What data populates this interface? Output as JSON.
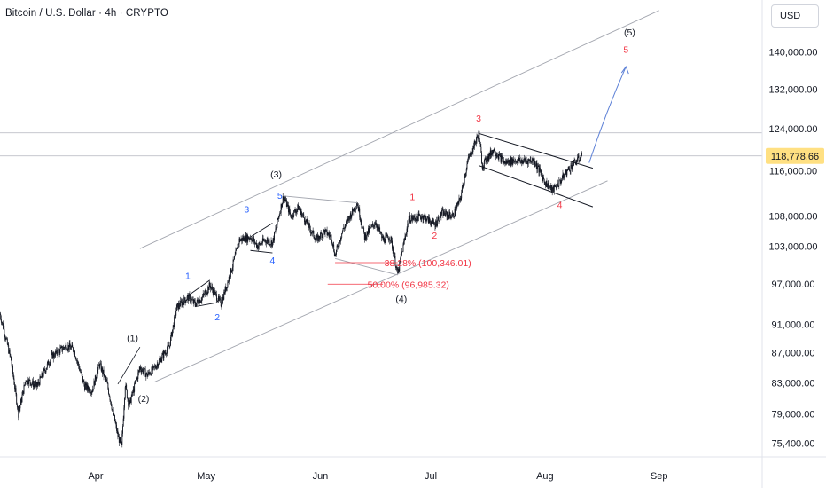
{
  "header": {
    "title": "Bitcoin / U.S. Dollar · 4h · CRYPTO",
    "currency": "USD"
  },
  "colors": {
    "candle": "#131722",
    "channel": "#a3a6af",
    "grid_line": "#b2b5be",
    "wave_blue": "#2962ff",
    "wave_red": "#f23645",
    "wave_black": "#131722",
    "price_badge": "#ffe082",
    "arrow": "#5b7fd6"
  },
  "chart_data": {
    "type": "candlestick",
    "title": "Bitcoin / U.S. Dollar · 4h · CRYPTO",
    "y_scale": "log",
    "y_range": [
      73800,
      152000
    ],
    "y_ticks": [
      "140,000.00",
      "132,000.00",
      "124,000.00",
      "116,000.00",
      "108,000.00",
      "103,000.00",
      "97,000.00",
      "91,000.00",
      "87,000.00",
      "83,000.00",
      "79,000.00",
      "75,400.00"
    ],
    "y_tick_values": [
      140000,
      132000,
      124000,
      116000,
      108000,
      103000,
      97000,
      91000,
      87000,
      83000,
      79000,
      75400
    ],
    "x_ticks": [
      "Apr",
      "May",
      "Jun",
      "Jul",
      "Aug",
      "Sep"
    ],
    "x_tick_dates": [
      "2025-04-01",
      "2025-05-01",
      "2025-06-01",
      "2025-07-01",
      "2025-08-01",
      "2025-09-01"
    ],
    "x_range": [
      "2025-03-06",
      "2025-09-29"
    ],
    "current_price": "118,778.66",
    "current_price_value": 118778.66,
    "reference_level": 123200,
    "price_path": [
      [
        "2025-03-06",
        92500
      ],
      [
        "2025-03-09",
        86000
      ],
      [
        "2025-03-11",
        79000
      ],
      [
        "2025-03-13",
        83500
      ],
      [
        "2025-03-16",
        82500
      ],
      [
        "2025-03-20",
        86500
      ],
      [
        "2025-03-24",
        88000
      ],
      [
        "2025-03-26",
        87500
      ],
      [
        "2025-03-29",
        82500
      ],
      [
        "2025-03-31",
        82000
      ],
      [
        "2025-04-02",
        85500
      ],
      [
        "2025-04-04",
        83000
      ],
      [
        "2025-04-07",
        76300
      ],
      [
        "2025-04-08",
        75000
      ],
      [
        "2025-04-09",
        82800
      ],
      [
        "2025-04-10",
        80000
      ],
      [
        "2025-04-13",
        85000
      ],
      [
        "2025-04-15",
        84000
      ],
      [
        "2025-04-17",
        85000
      ],
      [
        "2025-04-21",
        88000
      ],
      [
        "2025-04-23",
        93500
      ],
      [
        "2025-04-26",
        95000
      ],
      [
        "2025-04-28",
        94000
      ],
      [
        "2025-04-30",
        95000
      ],
      [
        "2025-05-02",
        96800
      ],
      [
        "2025-05-05",
        94000
      ],
      [
        "2025-05-08",
        99500
      ],
      [
        "2025-05-10",
        104000
      ],
      [
        "2025-05-13",
        104500
      ],
      [
        "2025-05-15",
        103000
      ],
      [
        "2025-05-17",
        104000
      ],
      [
        "2025-05-19",
        103500
      ],
      [
        "2025-05-22",
        111500
      ],
      [
        "2025-05-24",
        108000
      ],
      [
        "2025-05-26",
        109500
      ],
      [
        "2025-05-29",
        106000
      ],
      [
        "2025-05-31",
        104000
      ],
      [
        "2025-06-02",
        105500
      ],
      [
        "2025-06-04",
        104500
      ],
      [
        "2025-06-05",
        101500
      ],
      [
        "2025-06-07",
        105500
      ],
      [
        "2025-06-09",
        108000
      ],
      [
        "2025-06-11",
        110300
      ],
      [
        "2025-06-13",
        104500
      ],
      [
        "2025-06-16",
        107000
      ],
      [
        "2025-06-18",
        104000
      ],
      [
        "2025-06-20",
        104500
      ],
      [
        "2025-06-22",
        98500
      ],
      [
        "2025-06-23",
        101500
      ],
      [
        "2025-06-25",
        107500
      ],
      [
        "2025-06-29",
        108000
      ],
      [
        "2025-07-02",
        106500
      ],
      [
        "2025-07-04",
        108500
      ],
      [
        "2025-07-07",
        108000
      ],
      [
        "2025-07-09",
        111000
      ],
      [
        "2025-07-11",
        117800
      ],
      [
        "2025-07-14",
        123000
      ],
      [
        "2025-07-15",
        117000
      ],
      [
        "2025-07-18",
        120000
      ],
      [
        "2025-07-21",
        117500
      ],
      [
        "2025-07-24",
        118000
      ],
      [
        "2025-07-26",
        117800
      ],
      [
        "2025-07-29",
        118000
      ],
      [
        "2025-08-01",
        114000
      ],
      [
        "2025-08-03",
        112500
      ],
      [
        "2025-08-05",
        114000
      ],
      [
        "2025-08-07",
        116000
      ],
      [
        "2025-08-09",
        117500
      ],
      [
        "2025-08-11",
        118778.66
      ]
    ]
  },
  "annotations": {
    "waves_black": [
      "(1)",
      "(2)",
      "(3)",
      "(4)",
      "(5)"
    ],
    "waves_blue": [
      "1",
      "2",
      "3",
      "4",
      "5"
    ],
    "waves_red": [
      "1",
      "2",
      "3",
      "4",
      "5"
    ],
    "fib_382": "38.28% (100,346.01)",
    "fib_50": "50.00% (96,985.32)"
  }
}
